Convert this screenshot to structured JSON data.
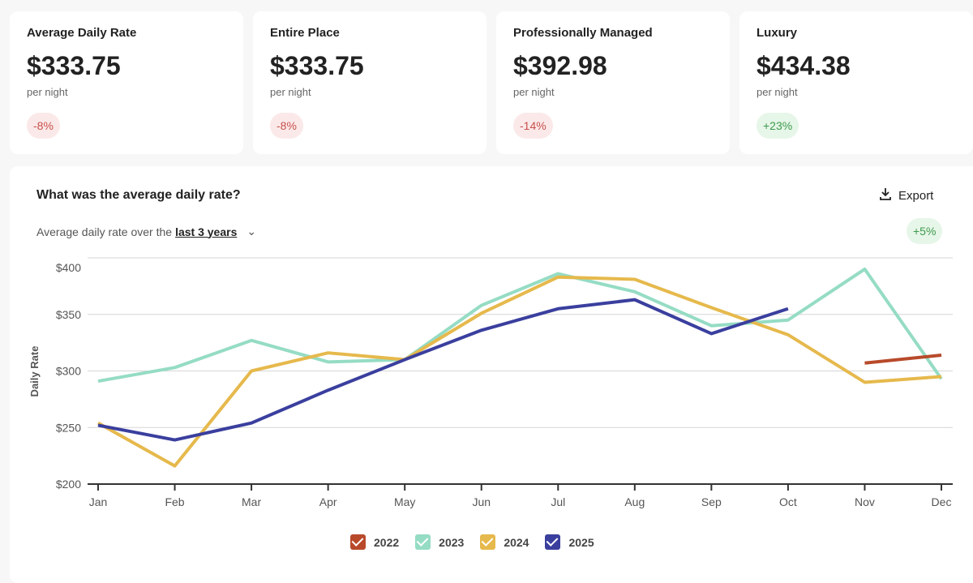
{
  "cards": [
    {
      "title": "Average Daily Rate",
      "value": "$333.75",
      "unit": "per night",
      "change": "-8%",
      "trend": "neg"
    },
    {
      "title": "Entire Place",
      "value": "$333.75",
      "unit": "per night",
      "change": "-8%",
      "trend": "neg"
    },
    {
      "title": "Professionally Managed",
      "value": "$392.98",
      "unit": "per night",
      "change": "-14%",
      "trend": "neg"
    },
    {
      "title": "Luxury",
      "value": "$434.38",
      "unit": "per night",
      "change": "+23%",
      "trend": "pos"
    }
  ],
  "panel": {
    "title": "What was the average daily rate?",
    "export_label": "Export",
    "subtitle_prefix": "Average daily rate over the",
    "period": "last 3 years",
    "change": "+5%"
  },
  "chart_data": {
    "type": "line",
    "ylabel": "Daily Rate",
    "ylim": [
      200,
      400
    ],
    "yticks": [
      "$200",
      "$250",
      "$300",
      "$350",
      "$400"
    ],
    "ytick_values": [
      200,
      250,
      300,
      350,
      400
    ],
    "categories": [
      "Jan",
      "Feb",
      "Mar",
      "Apr",
      "May",
      "Jun",
      "Jul",
      "Aug",
      "Sep",
      "Oct",
      "Nov",
      "Dec"
    ],
    "series": [
      {
        "name": "2022",
        "color": "#b84a2b",
        "values": [
          null,
          null,
          null,
          null,
          null,
          null,
          null,
          null,
          null,
          null,
          307,
          314
        ]
      },
      {
        "name": "2023",
        "color": "#95dcc4",
        "values": [
          291,
          303,
          327,
          308,
          310,
          358,
          386,
          370,
          340,
          345,
          390,
          293
        ]
      },
      {
        "name": "2024",
        "color": "#e6b94c",
        "values": [
          254,
          216,
          300,
          316,
          310,
          351,
          383,
          381,
          356,
          332,
          290,
          295
        ]
      },
      {
        "name": "2025",
        "color": "#3a3f9e",
        "values": [
          252,
          239,
          254,
          283,
          310,
          336,
          355,
          363,
          333,
          355,
          null,
          null
        ]
      }
    ],
    "legend": "bottom"
  }
}
